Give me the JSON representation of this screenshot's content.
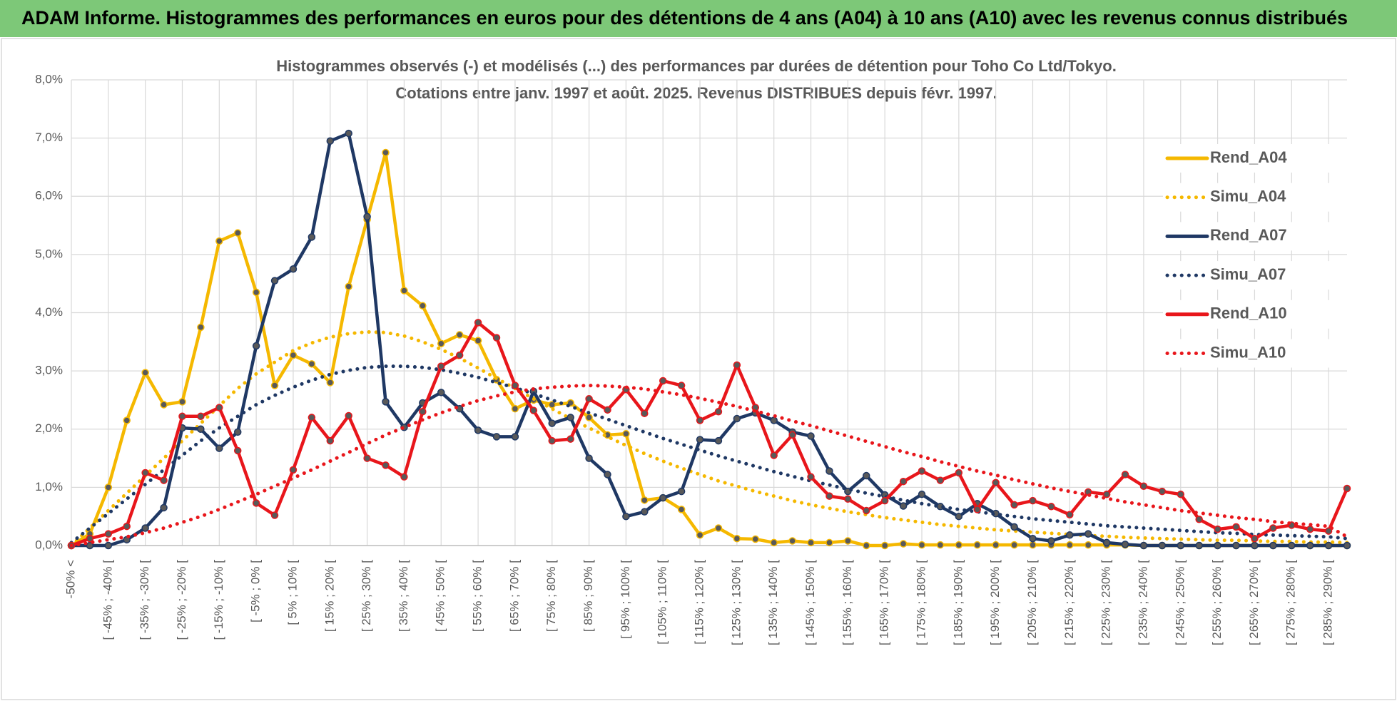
{
  "chart_data": {
    "type": "line",
    "header": "ADAM Informe. Histogrammes des performances en euros pour des détentions de 4 ans (A04) à 10 ans (A10) avec les revenus connus distribués",
    "title": "Histogrammes observés (-) et modélisés (...) des performances par durées de détention pour Toho Co Ltd/Tokyo.",
    "subtitle": "Cotations entre janv. 1997 et août. 2025. Revenus DISTRIBUES depuis févr. 1997.",
    "categories": [
      "-50% <",
      null,
      "[ -45% ; -40% [",
      null,
      "[ -35% ; -30% [",
      null,
      "[ -25% ; -20% [",
      null,
      "[ -15% ; -10% [",
      null,
      "[ -5% ; 0% [",
      null,
      "[ 5% ; 10% [",
      null,
      "[ 15% ; 20% [",
      null,
      "[ 25% ; 30% [",
      null,
      "[ 35% ; 40% [",
      null,
      "[ 45% ; 50% [",
      null,
      "[ 55% ; 60% [",
      null,
      "[ 65% ; 70% [",
      null,
      "[ 75% ; 80% [",
      null,
      "[ 85% ; 90% [",
      null,
      "[ 95% ; 100% [",
      null,
      "[ 105% ; 110% [",
      null,
      "[ 115% ; 120% [",
      null,
      "[ 125% ; 130% [",
      null,
      "[ 135% ; 140% [",
      null,
      "[ 145% ; 150% [",
      null,
      "[ 155% ; 160% [",
      null,
      "[ 165% ; 170% [",
      null,
      "[ 175% ; 180% [",
      null,
      "[ 185% ; 190% [",
      null,
      "[ 195% ; 200% [",
      null,
      "[ 205% ; 210% [",
      null,
      "[ 215% ; 220% [",
      null,
      "[ 225% ; 230% [",
      null,
      "[ 235% ; 240% [",
      null,
      "[ 245% ; 250% [",
      null,
      "[ 255% ; 260% [",
      null,
      "[ 265% ; 270% [",
      null,
      "[ 275% ; 280% [",
      null,
      "[ 285% ; 290% [",
      null
    ],
    "ylim": [
      0,
      8
    ],
    "yticks": [
      {
        "value": 0,
        "label": "0,0%"
      },
      {
        "value": 1,
        "label": "1,0%"
      },
      {
        "value": 2,
        "label": "2,0%"
      },
      {
        "value": 3,
        "label": "3,0%"
      },
      {
        "value": 4,
        "label": "4,0%"
      },
      {
        "value": 5,
        "label": "5,0%"
      },
      {
        "value": 6,
        "label": "6,0%"
      },
      {
        "value": 7,
        "label": "7,0%"
      },
      {
        "value": 8,
        "label": "8,0%"
      }
    ],
    "grid": true,
    "legend": "right",
    "series": [
      {
        "name": "Rend_A04",
        "color": "#f5b800",
        "style": "solid",
        "values": [
          0,
          0.2,
          1.0,
          2.15,
          2.97,
          2.42,
          2.47,
          3.75,
          5.23,
          5.37,
          4.35,
          2.75,
          3.27,
          3.12,
          2.8,
          4.45,
          5.6,
          6.75,
          4.38,
          4.12,
          3.47,
          3.62,
          3.52,
          2.85,
          2.35,
          2.5,
          2.42,
          2.45,
          2.2,
          1.9,
          1.92,
          0.78,
          0.82,
          0.62,
          0.18,
          0.3,
          0.12,
          0.11,
          0.05,
          0.08,
          0.05,
          0.05,
          0.08,
          0,
          0,
          0.03,
          0.01,
          0.01,
          0.01,
          0.01,
          0.01,
          0.01,
          0.01,
          0.01,
          0.01,
          0.01,
          0.01,
          0.01,
          0,
          0,
          0,
          0,
          0,
          0,
          0,
          0,
          0,
          0,
          0,
          0
        ]
      },
      {
        "name": "Simu_A04",
        "color": "#f5b800",
        "style": "dotted",
        "values": [
          0,
          0.3,
          0.6,
          0.9,
          1.2,
          1.5,
          1.8,
          2.1,
          2.4,
          2.7,
          2.95,
          3.15,
          3.35,
          3.48,
          3.58,
          3.64,
          3.67,
          3.66,
          3.6,
          3.5,
          3.37,
          3.22,
          3.05,
          2.87,
          2.7,
          2.52,
          2.35,
          2.18,
          2.02,
          1.87,
          1.72,
          1.58,
          1.45,
          1.33,
          1.22,
          1.11,
          1.02,
          0.93,
          0.85,
          0.77,
          0.7,
          0.64,
          0.58,
          0.53,
          0.48,
          0.44,
          0.4,
          0.36,
          0.33,
          0.3,
          0.27,
          0.25,
          0.23,
          0.21,
          0.19,
          0.17,
          0.16,
          0.14,
          0.13,
          0.12,
          0.11,
          0.1,
          0.09,
          0.09,
          0.08,
          0.07,
          0.07,
          0.06,
          0.06,
          0.05
        ]
      },
      {
        "name": "Rend_A07",
        "color": "#1f3864",
        "style": "solid",
        "values": [
          0,
          0,
          0,
          0.1,
          0.3,
          0.65,
          2.02,
          2.0,
          1.67,
          1.95,
          3.43,
          4.55,
          4.75,
          5.3,
          6.95,
          7.08,
          5.65,
          2.47,
          2.03,
          2.45,
          2.63,
          2.35,
          1.98,
          1.87,
          1.87,
          2.65,
          2.1,
          2.2,
          1.5,
          1.22,
          0.5,
          0.58,
          0.82,
          0.93,
          1.82,
          1.8,
          2.18,
          2.28,
          2.15,
          1.95,
          1.88,
          1.28,
          0.93,
          1.2,
          0.87,
          0.68,
          0.88,
          0.67,
          0.5,
          0.72,
          0.55,
          0.32,
          0.12,
          0.08,
          0.18,
          0.2,
          0.05,
          0.02,
          0,
          0,
          0,
          0,
          0,
          0,
          0,
          0,
          0,
          0,
          0,
          0
        ]
      },
      {
        "name": "Simu_A07",
        "color": "#1f3864",
        "style": "dotted",
        "values": [
          0.05,
          0.3,
          0.55,
          0.8,
          1.05,
          1.3,
          1.55,
          1.8,
          2.02,
          2.22,
          2.42,
          2.58,
          2.72,
          2.84,
          2.94,
          3.01,
          3.06,
          3.08,
          3.08,
          3.06,
          3.02,
          2.96,
          2.89,
          2.8,
          2.71,
          2.61,
          2.5,
          2.39,
          2.28,
          2.17,
          2.06,
          1.95,
          1.84,
          1.74,
          1.64,
          1.54,
          1.45,
          1.36,
          1.27,
          1.19,
          1.11,
          1.04,
          0.97,
          0.9,
          0.84,
          0.78,
          0.72,
          0.67,
          0.62,
          0.58,
          0.54,
          0.5,
          0.46,
          0.43,
          0.4,
          0.37,
          0.34,
          0.32,
          0.3,
          0.28,
          0.26,
          0.24,
          0.22,
          0.21,
          0.19,
          0.18,
          0.17,
          0.16,
          0.15,
          0.12
        ]
      },
      {
        "name": "Rend_A10",
        "color": "#e8161b",
        "style": "solid",
        "values": [
          0,
          0.12,
          0.2,
          0.33,
          1.25,
          1.12,
          2.22,
          2.22,
          2.37,
          1.63,
          0.73,
          0.52,
          1.3,
          2.2,
          1.8,
          2.23,
          1.5,
          1.38,
          1.18,
          2.3,
          3.08,
          3.27,
          3.83,
          3.57,
          2.75,
          2.32,
          1.8,
          1.83,
          2.52,
          2.33,
          2.68,
          2.27,
          2.83,
          2.75,
          2.15,
          2.3,
          3.1,
          2.37,
          1.55,
          1.9,
          1.18,
          0.85,
          0.8,
          0.6,
          0.77,
          1.1,
          1.28,
          1.12,
          1.25,
          0.62,
          1.08,
          0.7,
          0.77,
          0.67,
          0.53,
          0.92,
          0.88,
          1.22,
          1.02,
          0.93,
          0.88,
          0.45,
          0.28,
          0.32,
          0.12,
          0.3,
          0.35,
          0.28,
          0.25,
          0.98
        ]
      },
      {
        "name": "Simu_A10",
        "color": "#e8161b",
        "style": "dotted",
        "values": [
          0,
          0.05,
          0.1,
          0.15,
          0.22,
          0.3,
          0.4,
          0.5,
          0.62,
          0.75,
          0.88,
          1.02,
          1.16,
          1.3,
          1.45,
          1.6,
          1.75,
          1.9,
          2.03,
          2.16,
          2.28,
          2.39,
          2.49,
          2.57,
          2.64,
          2.69,
          2.72,
          2.74,
          2.75,
          2.74,
          2.72,
          2.69,
          2.64,
          2.59,
          2.53,
          2.46,
          2.39,
          2.31,
          2.23,
          2.14,
          2.06,
          1.97,
          1.88,
          1.79,
          1.7,
          1.61,
          1.53,
          1.44,
          1.36,
          1.28,
          1.21,
          1.13,
          1.06,
          0.99,
          0.93,
          0.87,
          0.81,
          0.75,
          0.7,
          0.65,
          0.6,
          0.56,
          0.52,
          0.48,
          0.45,
          0.41,
          0.38,
          0.36,
          0.33,
          0.15
        ]
      }
    ]
  }
}
